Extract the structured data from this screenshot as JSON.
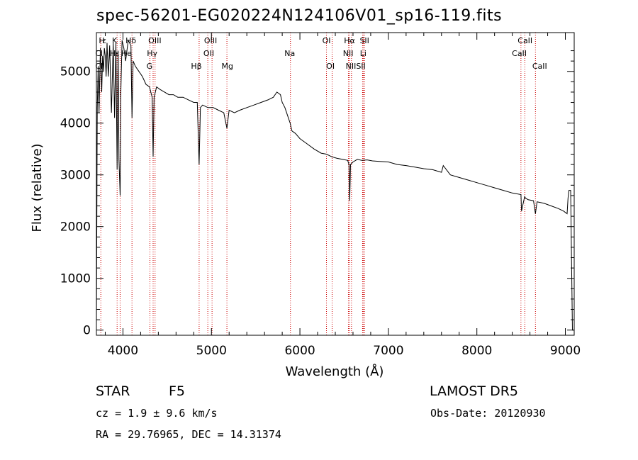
{
  "chart_data": {
    "type": "line",
    "title": "spec-56201-EG020224N124106V01_sp16-119.fits",
    "xlabel": "Wavelength (Å)",
    "ylabel": "Flux (relative)",
    "xlim": [
      3700,
      9100
    ],
    "ylim": [
      -100,
      5750
    ],
    "xticks": [
      4000,
      5000,
      6000,
      7000,
      8000,
      9000
    ],
    "yticks": [
      0,
      1000,
      2000,
      3000,
      4000,
      5000
    ],
    "grid": false,
    "series": [
      {
        "x": [
          3700,
          3710,
          3720,
          3730,
          3745,
          3760,
          3770,
          3780,
          3790,
          3800,
          3810,
          3820,
          3835,
          3850,
          3870,
          3890,
          3905,
          3920,
          3934,
          3945,
          3955,
          3968,
          3975,
          3990,
          4010,
          4030,
          4060,
          4090,
          4102,
          4115,
          4140,
          4180,
          4220,
          4260,
          4300,
          4330,
          4341,
          4352,
          4380,
          4420,
          4470,
          4520,
          4570,
          4620,
          4680,
          4740,
          4800,
          4840,
          4861,
          4875,
          4900,
          4960,
          5020,
          5080,
          5140,
          5175,
          5200,
          5260,
          5320,
          5400,
          5480,
          5560,
          5640,
          5700,
          5740,
          5780,
          5800,
          5830,
          5860,
          5890,
          5910,
          5950,
          6000,
          6080,
          6160,
          6240,
          6300,
          6360,
          6420,
          6480,
          6540,
          6555,
          6563,
          6572,
          6600,
          6650,
          6700,
          6760,
          6820,
          6900,
          7000,
          7100,
          7200,
          7300,
          7400,
          7500,
          7600,
          7620,
          7700,
          7800,
          7900,
          8000,
          8100,
          8200,
          8300,
          8400,
          8498,
          8505,
          8540,
          8550,
          8580,
          8640,
          8662,
          8680,
          8760,
          8840,
          8920,
          8980,
          9020,
          9030,
          9040,
          9050,
          9060,
          9080,
          9100
        ],
        "y": [
          100,
          4300,
          5100,
          4200,
          5450,
          4600,
          5300,
          5000,
          5450,
          5300,
          4900,
          5550,
          4900,
          5500,
          4200,
          5550,
          4100,
          5550,
          3100,
          5400,
          3300,
          2600,
          4500,
          5600,
          5450,
          5200,
          5600,
          5500,
          4100,
          5200,
          5100,
          5000,
          4900,
          4750,
          4700,
          4500,
          3350,
          4500,
          4700,
          4650,
          4600,
          4550,
          4550,
          4500,
          4500,
          4450,
          4400,
          4400,
          3200,
          4300,
          4350,
          4300,
          4300,
          4250,
          4200,
          3900,
          4250,
          4200,
          4250,
          4300,
          4350,
          4400,
          4450,
          4500,
          4600,
          4550,
          4400,
          4300,
          4150,
          4000,
          3850,
          3800,
          3700,
          3600,
          3500,
          3420,
          3400,
          3350,
          3320,
          3300,
          3280,
          3200,
          2500,
          3200,
          3250,
          3300,
          3280,
          3290,
          3270,
          3260,
          3250,
          3200,
          3180,
          3150,
          3120,
          3100,
          3050,
          3180,
          3000,
          2950,
          2900,
          2850,
          2800,
          2750,
          2700,
          2650,
          2620,
          2300,
          2580,
          2550,
          2520,
          2500,
          2250,
          2480,
          2450,
          2400,
          2350,
          2300,
          2250,
          2550,
          2700,
          2700,
          2700,
          0,
          0
        ]
      }
    ],
    "line_markers": [
      {
        "label": "Hε",
        "x": 3750
      },
      {
        "label": "CaII H",
        "x": 3968
      },
      {
        "label": "CaII K",
        "x": 3934
      },
      {
        "label": "Hδ",
        "x": 4102
      },
      {
        "label": "Hγ",
        "x": 4341
      },
      {
        "label": "G",
        "x": 4305
      },
      {
        "label": "OIII",
        "x": 4363
      },
      {
        "label": "Hβ",
        "x": 4861
      },
      {
        "label": "OIII",
        "x": 4959
      },
      {
        "label": "OIII",
        "x": 5007
      },
      {
        "label": "Mg",
        "x": 5175
      },
      {
        "label": "Na",
        "x": 5893
      },
      {
        "label": "OI",
        "x": 6300
      },
      {
        "label": "OI",
        "x": 6364
      },
      {
        "label": "NII",
        "x": 6548
      },
      {
        "label": "Hα",
        "x": 6563
      },
      {
        "label": "NII",
        "x": 6583
      },
      {
        "label": "Li",
        "x": 6708
      },
      {
        "label": "SII",
        "x": 6716
      },
      {
        "label": "SII",
        "x": 6731
      },
      {
        "label": "CaII",
        "x": 8498
      },
      {
        "label": "CaII",
        "x": 8542
      },
      {
        "label": "CaII",
        "x": 8662
      }
    ],
    "marker_labels": [
      {
        "text": "H",
        "x": 3760,
        "row": 0
      },
      {
        "text": "ε",
        "x": 3790,
        "row": 0
      },
      {
        "text": "K",
        "x": 3905,
        "row": 0
      },
      {
        "text": "Hδ",
        "x": 4090,
        "row": 0
      },
      {
        "text": "OIII",
        "x": 4360,
        "row": 0
      },
      {
        "text": "OIII",
        "x": 4990,
        "row": 0
      },
      {
        "text": "OI",
        "x": 6300,
        "row": 0
      },
      {
        "text": "Hα",
        "x": 6560,
        "row": 0
      },
      {
        "text": "SII",
        "x": 6730,
        "row": 0
      },
      {
        "text": "CaII",
        "x": 8545,
        "row": 0
      },
      {
        "text": "Cl",
        "x": 3730,
        "row": 1
      },
      {
        "text": "H",
        "x": 3885,
        "row": 1
      },
      {
        "text": "ε",
        "x": 3935,
        "row": 1
      },
      {
        "text": "He",
        "x": 4040,
        "row": 1
      },
      {
        "text": "Hγ",
        "x": 4330,
        "row": 1
      },
      {
        "text": "OII",
        "x": 4970,
        "row": 1
      },
      {
        "text": "Na",
        "x": 5885,
        "row": 1
      },
      {
        "text": "NII",
        "x": 6545,
        "row": 1
      },
      {
        "text": "Li",
        "x": 6715,
        "row": 1
      },
      {
        "text": "CaII",
        "x": 8480,
        "row": 1
      },
      {
        "text": "Cl",
        "x": 3730,
        "row": 2
      },
      {
        "text": "G",
        "x": 4300,
        "row": 2
      },
      {
        "text": "Hβ",
        "x": 4830,
        "row": 2
      },
      {
        "text": "Mg",
        "x": 5180,
        "row": 2
      },
      {
        "text": "OI",
        "x": 6345,
        "row": 2
      },
      {
        "text": "NIISII",
        "x": 6630,
        "row": 2
      },
      {
        "text": "CaII",
        "x": 8710,
        "row": 2
      }
    ]
  },
  "info": {
    "object_class": "STAR",
    "subclass": "F5",
    "survey": "LAMOST DR5",
    "cz": "cz = 1.9 ± 9.6 km/s",
    "obs_date": "Obs-Date: 20120930",
    "coords": "RA =  29.76965, DEC =  14.31374"
  },
  "colors": {
    "line": "#000000",
    "marker": "#cc0000",
    "background": "#ffffff"
  }
}
